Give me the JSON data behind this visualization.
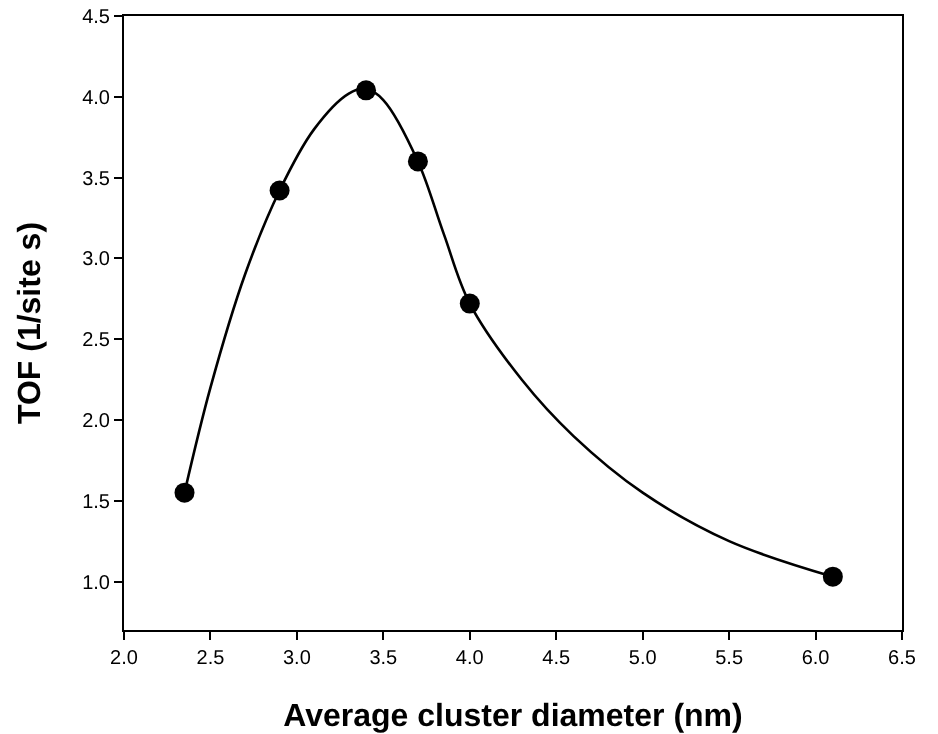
{
  "chart_data": {
    "type": "scatter",
    "xlabel": "Average cluster diameter (nm)",
    "ylabel": "TOF (1/site s)",
    "x": [
      2.35,
      2.9,
      3.4,
      3.7,
      4.0,
      6.1
    ],
    "series": [
      {
        "color": "#000000",
        "marker": "circle",
        "values": [
          1.55,
          3.42,
          4.04,
          3.6,
          2.72,
          1.03
        ]
      },
      {
        "type": "line",
        "color": "#000000",
        "marker": "none",
        "x": [
          2.35,
          2.5,
          2.7,
          2.9,
          3.1,
          3.3,
          3.4,
          3.5,
          3.7,
          3.85,
          4.0,
          4.3,
          4.6,
          5.0,
          5.5,
          6.1
        ],
        "values": [
          1.55,
          2.2,
          2.9,
          3.42,
          3.8,
          4.02,
          4.05,
          3.98,
          3.6,
          3.15,
          2.72,
          2.25,
          1.9,
          1.55,
          1.25,
          1.03
        ]
      }
    ],
    "xlim": [
      2.0,
      6.5
    ],
    "xticks": [
      {
        "value": 2,
        "label": "2.0"
      },
      {
        "value": 2.5,
        "label": "2.5"
      },
      {
        "value": 3,
        "label": "3.0"
      },
      {
        "value": 3.5,
        "label": "3.5"
      },
      {
        "value": 4,
        "label": "4.0"
      },
      {
        "value": 4.5,
        "label": "4.5"
      },
      {
        "value": 5,
        "label": "5.0"
      },
      {
        "value": 5.5,
        "label": "5.5"
      },
      {
        "value": 6,
        "label": "6.0"
      },
      {
        "value": 6.5,
        "label": "6.5"
      }
    ],
    "ylim": [
      0.7,
      4.5
    ],
    "yticks": [
      {
        "value": 1,
        "label": "1.0"
      },
      {
        "value": 1.5,
        "label": "1.5"
      },
      {
        "value": 2,
        "label": "2.0"
      },
      {
        "value": 2.5,
        "label": "2.5"
      },
      {
        "value": 3,
        "label": "3.0"
      },
      {
        "value": 3.5,
        "label": "3.5"
      },
      {
        "value": 4,
        "label": "4.0"
      },
      {
        "value": 4.5,
        "label": "4.5"
      }
    ],
    "grid": false,
    "legend": false
  }
}
